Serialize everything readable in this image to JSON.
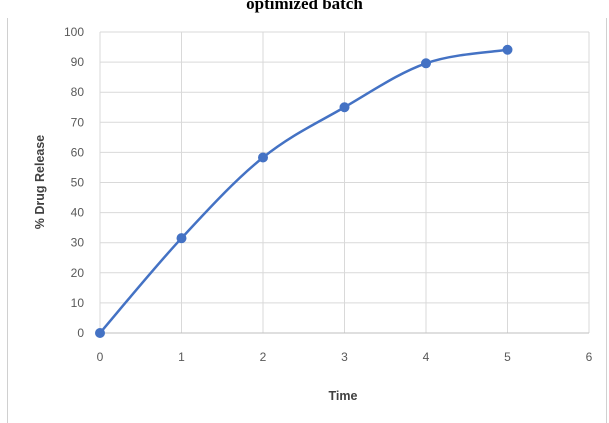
{
  "chart_data": {
    "type": "line",
    "title": "optimized batch",
    "xlabel": "Time",
    "ylabel": "% Drug Release",
    "xlim": [
      0,
      6
    ],
    "ylim": [
      0,
      100
    ],
    "x_ticks": [
      "0",
      "1",
      "2",
      "3",
      "4",
      "5",
      "6"
    ],
    "y_ticks": [
      "0",
      "10",
      "20",
      "30",
      "40",
      "50",
      "60",
      "70",
      "80",
      "90",
      "100"
    ],
    "grid": true,
    "legend": "none",
    "series": [
      {
        "x": [
          0,
          1,
          2,
          3,
          4,
          5
        ],
        "y": [
          0,
          31.5,
          58.3,
          75,
          89.6,
          94.1
        ],
        "color": "#4472C4",
        "smooth": true,
        "markers": true
      }
    ]
  }
}
